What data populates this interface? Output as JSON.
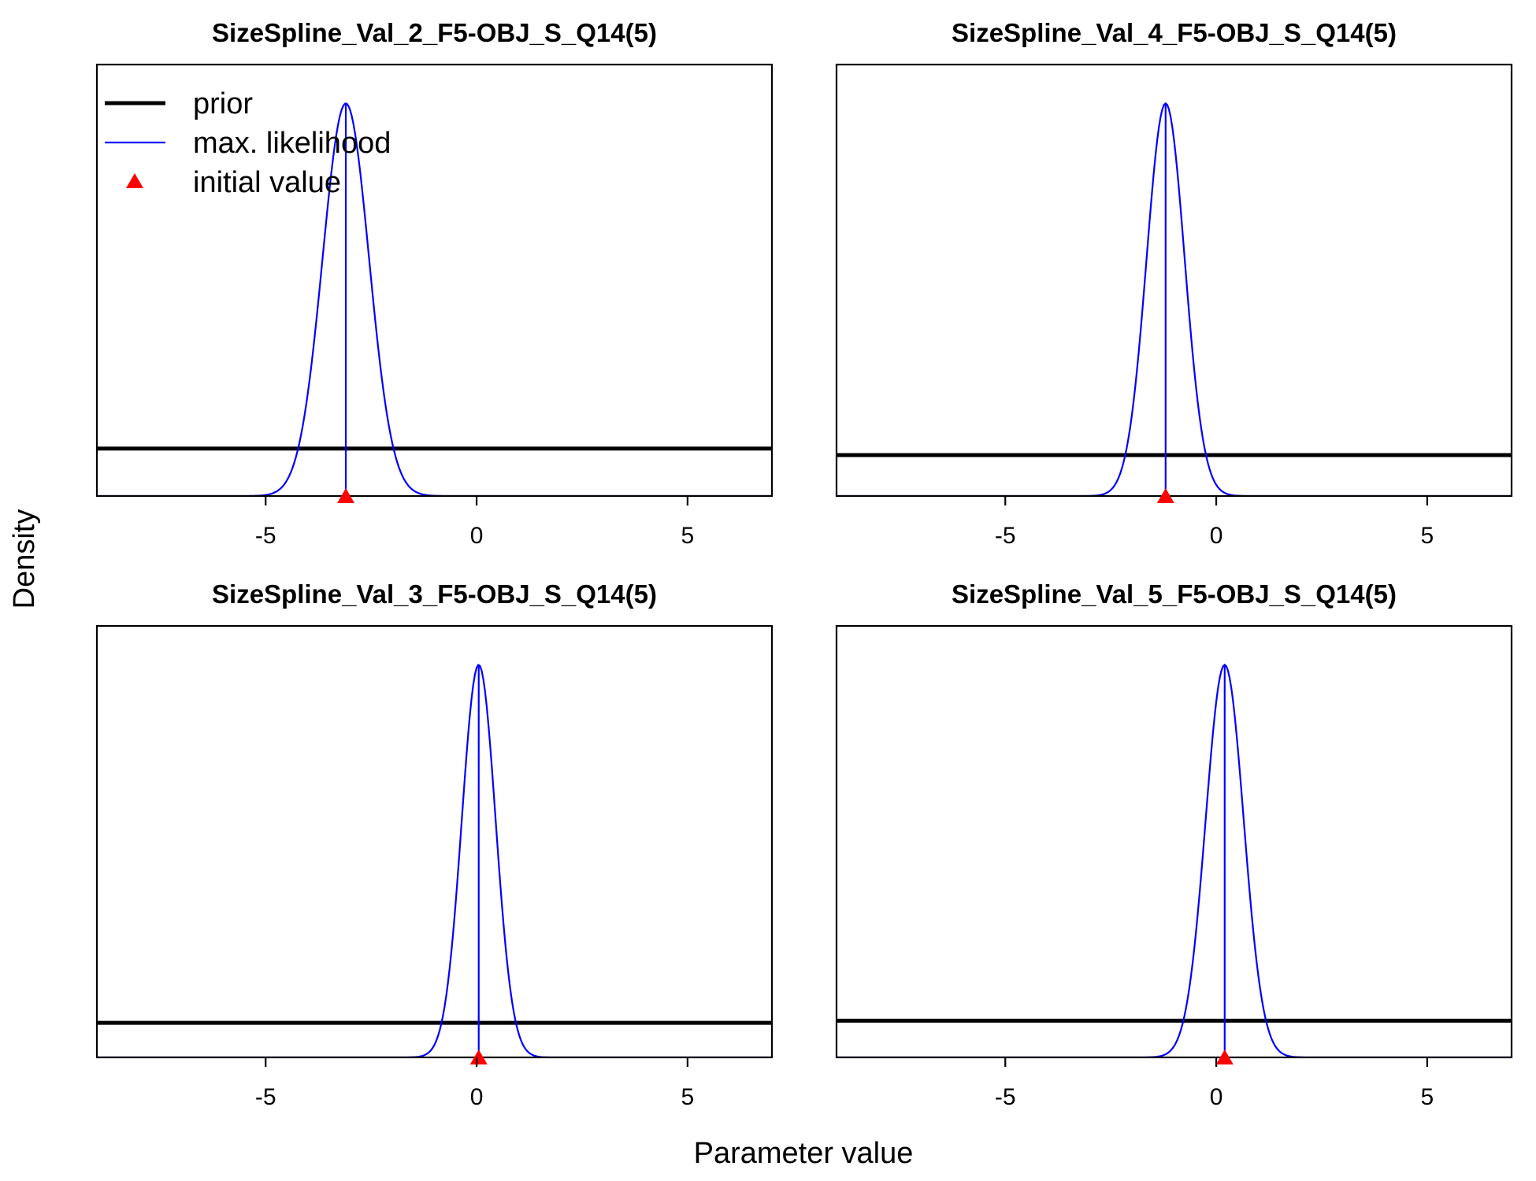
{
  "figure": {
    "ylabel": "Density",
    "xlabel": "Parameter value"
  },
  "legend": {
    "placement": "top-left of first panel",
    "items": [
      {
        "label": "prior",
        "kind": "line",
        "color": "#000000"
      },
      {
        "label": "max. likelihood",
        "kind": "line",
        "color": "#0000ff"
      },
      {
        "label": "initial value",
        "kind": "triangle",
        "color": "#ff0000"
      }
    ]
  },
  "colors": {
    "prior": "#000000",
    "max_likelihood": "#0000ff",
    "initial_value": "#ff0000"
  },
  "chart_data": [
    {
      "type": "line",
      "title": "SizeSpline_Val_2_F5-OBJ_S_Q14(5)",
      "xlim": [
        -9,
        7
      ],
      "xticks": [
        -5,
        0,
        5
      ],
      "xtick_labels": [
        "-5",
        "0",
        "5"
      ],
      "prior_relative_height": 0.11,
      "max_likelihood": {
        "mean": -3.1,
        "sd": 0.55
      },
      "initial_value": -3.1
    },
    {
      "type": "line",
      "title": "SizeSpline_Val_4_F5-OBJ_S_Q14(5)",
      "xlim": [
        -9,
        7
      ],
      "xticks": [
        -5,
        0,
        5
      ],
      "xtick_labels": [
        "-5",
        "0",
        "5"
      ],
      "prior_relative_height": 0.095,
      "max_likelihood": {
        "mean": -1.2,
        "sd": 0.45
      },
      "initial_value": -1.2
    },
    {
      "type": "line",
      "title": "SizeSpline_Val_3_F5-OBJ_S_Q14(5)",
      "xlim": [
        -9,
        7
      ],
      "xticks": [
        -5,
        0,
        5
      ],
      "xtick_labels": [
        "-5",
        "0",
        "5"
      ],
      "prior_relative_height": 0.08,
      "max_likelihood": {
        "mean": 0.05,
        "sd": 0.4
      },
      "initial_value": 0.05
    },
    {
      "type": "line",
      "title": "SizeSpline_Val_5_F5-OBJ_S_Q14(5)",
      "xlim": [
        -9,
        7
      ],
      "xticks": [
        -5,
        0,
        5
      ],
      "xtick_labels": [
        "-5",
        "0",
        "5"
      ],
      "prior_relative_height": 0.085,
      "max_likelihood": {
        "mean": 0.2,
        "sd": 0.45
      },
      "initial_value": 0.2
    }
  ]
}
